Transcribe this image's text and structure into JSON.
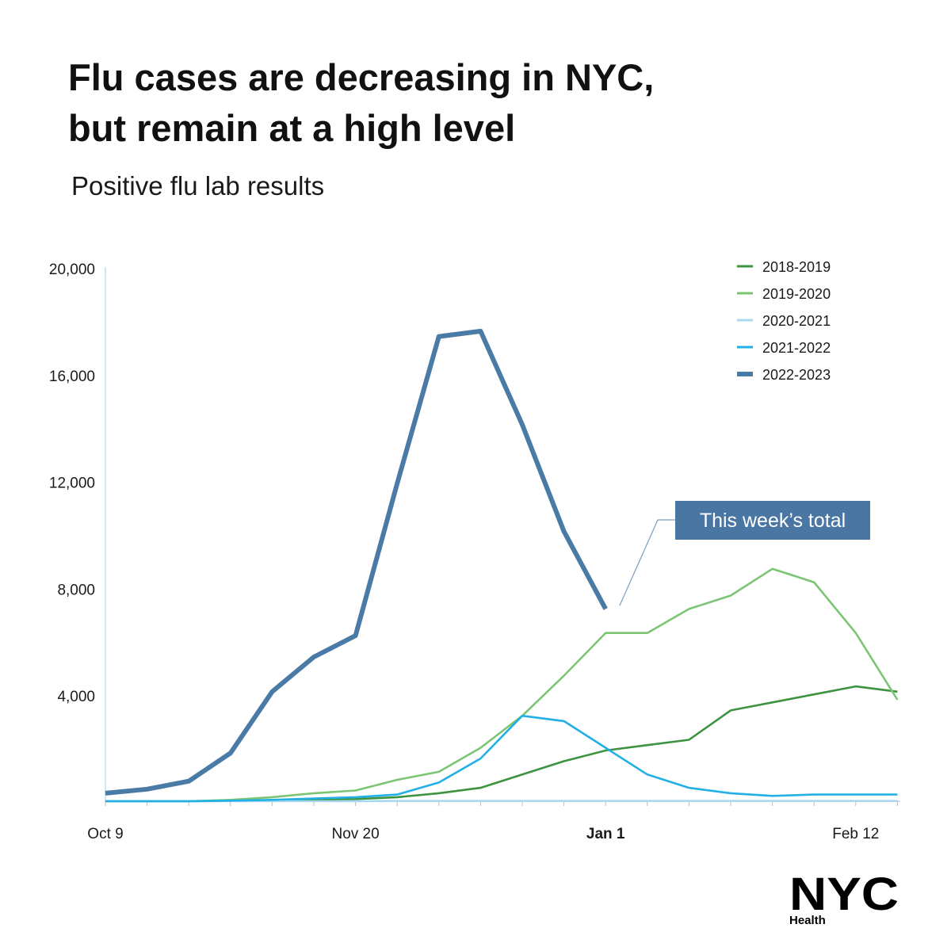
{
  "title": {
    "line1": "Flu cases are decreasing in NYC,",
    "line2": "but remain at a high level"
  },
  "subtitle": "Positive flu lab results",
  "annotation": {
    "text": "This week’s total",
    "color": "#4a76a4"
  },
  "logo": {
    "wordmark": "NYC",
    "label": "Health"
  },
  "chart_data": {
    "type": "line",
    "title": "Flu cases are decreasing in NYC, but remain at a high level",
    "ylabel": "",
    "xlabel": "",
    "ylim": [
      0,
      20000
    ],
    "ytick_values": [
      4000,
      8000,
      12000,
      16000,
      20000
    ],
    "ytick_labels": [
      "4,000",
      "8,000",
      "12,000",
      "16,000",
      "20,000"
    ],
    "xtick_labels": [
      {
        "label": "Oct  9",
        "week": 0,
        "bold": false
      },
      {
        "label": "Nov 20",
        "week": 6,
        "bold": false
      },
      {
        "label": "Jan 1",
        "week": 12,
        "bold": true
      },
      {
        "label": "Feb 12",
        "week": 18,
        "bold": false
      }
    ],
    "x_weeks": 19,
    "grid": false,
    "legend_position": "top-right",
    "series": [
      {
        "name": "2018-2019",
        "color": "#3d9340",
        "values": [
          0,
          0,
          0,
          20,
          40,
          60,
          80,
          150,
          300,
          500,
          1000,
          1500,
          1900,
          2100,
          2300,
          3400,
          3700,
          4000,
          4300,
          4100
        ]
      },
      {
        "name": "2019-2020",
        "color": "#7cc574",
        "values": [
          0,
          0,
          0,
          50,
          150,
          300,
          400,
          800,
          1100,
          2000,
          3200,
          4700,
          6300,
          6300,
          7200,
          7700,
          8700,
          8200,
          6300,
          3800
        ]
      },
      {
        "name": "2020-2021",
        "color": "#a8d8f0",
        "values": [
          0,
          0,
          0,
          0,
          0,
          0,
          0,
          10,
          10,
          10,
          10,
          10,
          10,
          10,
          10,
          10,
          10,
          10,
          10,
          10
        ]
      },
      {
        "name": "2021-2022",
        "color": "#22b0e6",
        "values": [
          0,
          0,
          0,
          20,
          50,
          100,
          150,
          250,
          700,
          1600,
          3200,
          3000,
          2000,
          1000,
          500,
          300,
          200,
          250,
          250,
          250
        ]
      },
      {
        "name": "2022-2023",
        "color": "#4a7ba6",
        "values": [
          300,
          450,
          750,
          1800,
          4100,
          5400,
          6200,
          11900,
          17400,
          17600,
          14100,
          10100,
          7200
        ]
      }
    ]
  }
}
